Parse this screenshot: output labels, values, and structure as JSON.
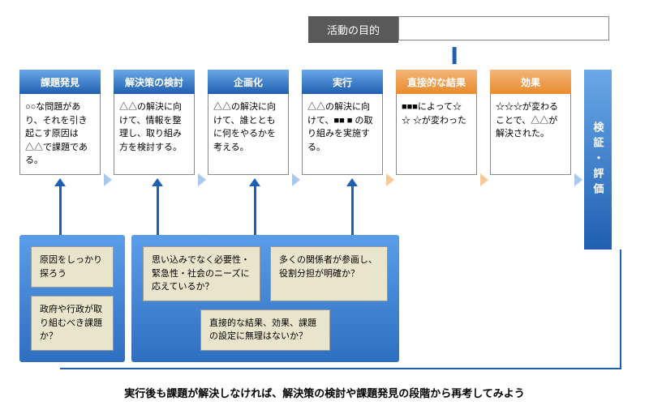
{
  "colors": {
    "blue": "#1f5fb0",
    "blue_grad_light": "#6aa8e8",
    "blue_arrow": "#a8c8ee",
    "orange": "#e88b2d",
    "orange_arrow": "#f5c99a",
    "panel_blue_dark": "#2e6fc0",
    "panel_blue_light": "#5a9de8",
    "gray_header": "#595959"
  },
  "purpose_label": "活動の目的",
  "equals": "||",
  "stages": [
    {
      "title": "課題発見",
      "body": "○○な問題があり、それを引き起こす原因は△△で課題である。",
      "color": "blue"
    },
    {
      "title": "解決策の検討",
      "body": "△△の解決に向けて、情報を整理し、取り組み方を検討する。",
      "color": "blue"
    },
    {
      "title": "企画化",
      "body": "△△の解決に向けて、誰とともに何をやるかを考える。",
      "color": "blue"
    },
    {
      "title": "実行",
      "body": "△△の解決に向けて、■■ ■ の取り組みを実施する。",
      "color": "blue"
    },
    {
      "title": "直接的な結果",
      "body": "■■■によって☆ ☆ ☆が変わった",
      "color": "orange"
    },
    {
      "title": "効果",
      "body": "☆☆☆が変わることで、△△が解決された。",
      "color": "orange"
    }
  ],
  "validate_label": "検証・評価",
  "panel1": {
    "q1": "原因をしっかり探ろう",
    "q2": "政府や行政が取り組むべき課題か？"
  },
  "panel2": {
    "q1": "思い込みでなく必要性・緊急性・社会のニーズに応えているか？",
    "q2": "多くの関係者が参画し、役割分担が明確か？",
    "q3": "直接的な結果、効果、課題の設定に無理はないか？"
  },
  "bottom_text": "実行後も課題が解決しなければ、解決策の検討や課題発見の段階から再考してみよう"
}
